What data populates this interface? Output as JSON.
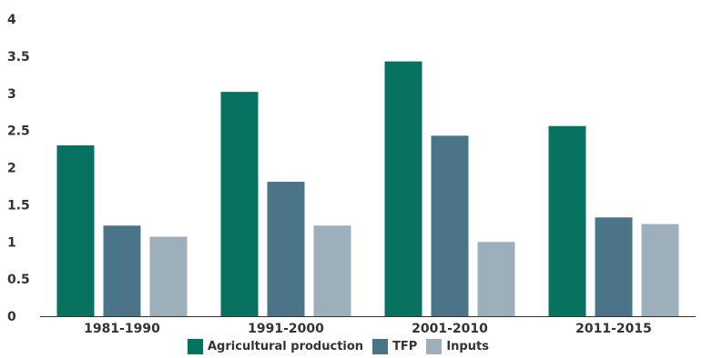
{
  "chart_data": {
    "type": "bar",
    "title": "",
    "xlabel": "",
    "ylabel": "",
    "categories": [
      "1981-1990",
      "1991-2000",
      "2001-2010",
      "2011-2015"
    ],
    "ylim": [
      0,
      4
    ],
    "yticks": [
      "0",
      "0.5",
      "1",
      "1.5",
      "2",
      "2.5",
      "3",
      "3.5",
      "4"
    ],
    "grid": false,
    "legend_position": "bottom",
    "series": [
      {
        "name": "Agricultural production",
        "color": "#087260",
        "values": [
          2.3,
          3.02,
          3.43,
          2.56
        ]
      },
      {
        "name": "TFP",
        "color": "#4a7589",
        "values": [
          1.22,
          1.81,
          2.43,
          1.33
        ]
      },
      {
        "name": "Inputs",
        "color": "#9dafba",
        "values": [
          1.07,
          1.22,
          1.0,
          1.24
        ]
      }
    ]
  }
}
